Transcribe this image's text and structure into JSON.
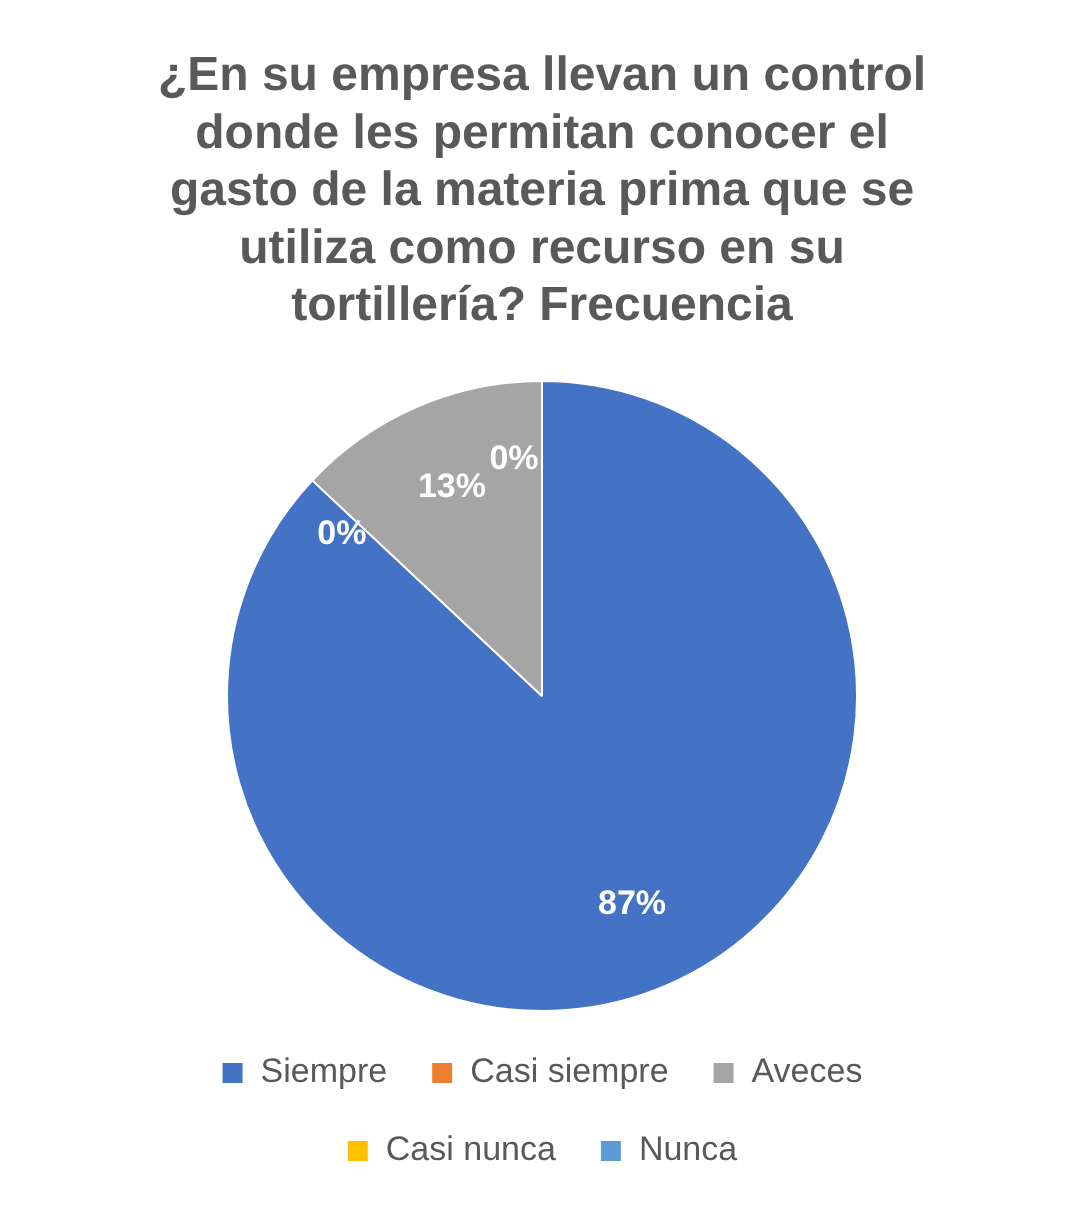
{
  "chart_data": {
    "type": "pie",
    "title": "¿En su empresa llevan un control donde les permitan conocer el gasto de la materia prima que se utiliza como recurso en su tortillería? Frecuencia",
    "categories": [
      "Siempre",
      "Casi siempre",
      "Aveces",
      "Casi nunca",
      "Nunca"
    ],
    "values": [
      87,
      0,
      13,
      0,
      0
    ],
    "colors": [
      "#4472c4",
      "#ed7d31",
      "#a5a5a5",
      "#ffc000",
      "#5b9bd5"
    ],
    "value_labels": [
      "87%",
      "0%",
      "13%",
      "0%",
      null
    ],
    "legend": "bottom"
  }
}
